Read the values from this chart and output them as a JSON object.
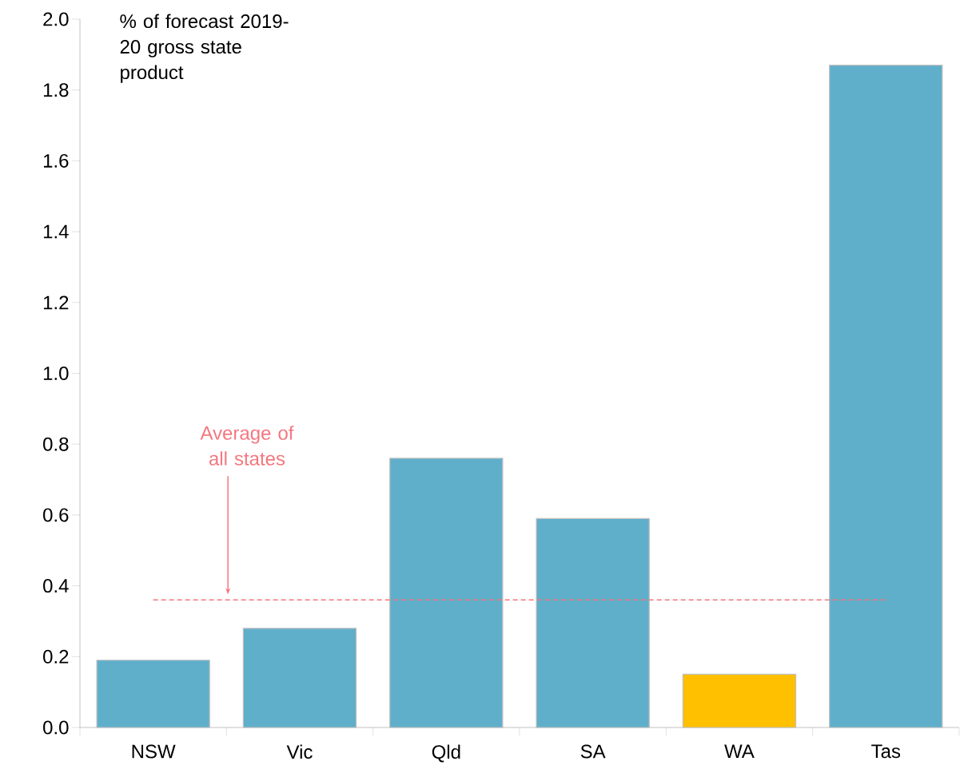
{
  "chart_data": {
    "type": "bar",
    "ylabel": "% of forecast 2019-20 gross state product",
    "categories": [
      "NSW",
      "Vic",
      "Qld",
      "SA",
      "WA",
      "Tas"
    ],
    "values": [
      0.19,
      0.28,
      0.76,
      0.59,
      0.15,
      1.87
    ],
    "colors": [
      "#5fafcb",
      "#5fafcb",
      "#5fafcb",
      "#5fafcb",
      "#ffc000",
      "#5fafcb"
    ],
    "ylim": [
      0,
      2.0
    ],
    "yticks": [
      {
        "value": 0,
        "label": "0.0"
      },
      {
        "value": 0.2,
        "label": "0.2"
      },
      {
        "value": 0.4,
        "label": "0.4"
      },
      {
        "value": 0.6,
        "label": "0.6"
      },
      {
        "value": 0.8,
        "label": "0.8"
      },
      {
        "value": 1.0,
        "label": "1.0"
      },
      {
        "value": 1.2,
        "label": "1.2"
      },
      {
        "value": 1.4,
        "label": "1.4"
      },
      {
        "value": 1.6,
        "label": "1.6"
      },
      {
        "value": 1.8,
        "label": "1.8"
      },
      {
        "value": 2.0,
        "label": "2.0"
      }
    ],
    "ref_lines": [
      {
        "axis": "y",
        "value": 0.36,
        "label": "Average of all states",
        "color": "#f4777f",
        "line_style": "dashed"
      }
    ],
    "grid": false
  }
}
